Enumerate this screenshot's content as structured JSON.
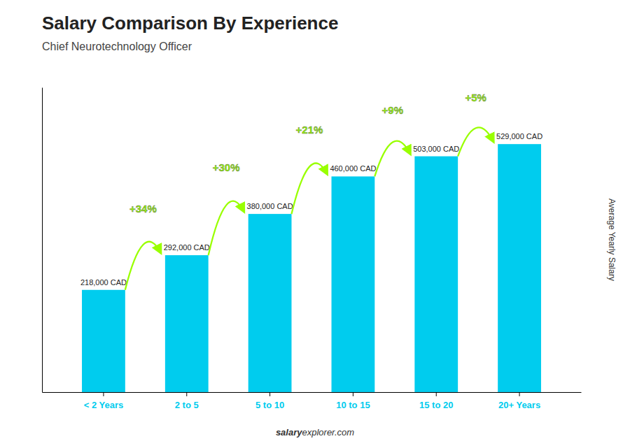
{
  "chart_data": {
    "type": "bar",
    "title": "Salary Comparison By Experience",
    "subtitle": "Chief Neurotechnology Officer",
    "ylabel": "Average Yearly Salary",
    "categories": [
      "< 2 Years",
      "2 to 5",
      "5 to 10",
      "10 to 15",
      "15 to 20",
      "20+ Years"
    ],
    "values": [
      218000,
      292000,
      380000,
      460000,
      503000,
      529000
    ],
    "value_labels": [
      "218,000 CAD",
      "292,000 CAD",
      "380,000 CAD",
      "460,000 CAD",
      "503,000 CAD",
      "529,000 CAD"
    ],
    "data_labels": true,
    "color": "#00ccee",
    "ylim": [
      0,
      650000
    ],
    "tick_labels": "x",
    "grid": false,
    "annotations": {
      "texts": [
        "+34%",
        "+30%",
        "+21%",
        "+9%",
        "+5%"
      ],
      "color": "#99ff00"
    },
    "footer": [
      "salary",
      "explorer.com"
    ]
  }
}
